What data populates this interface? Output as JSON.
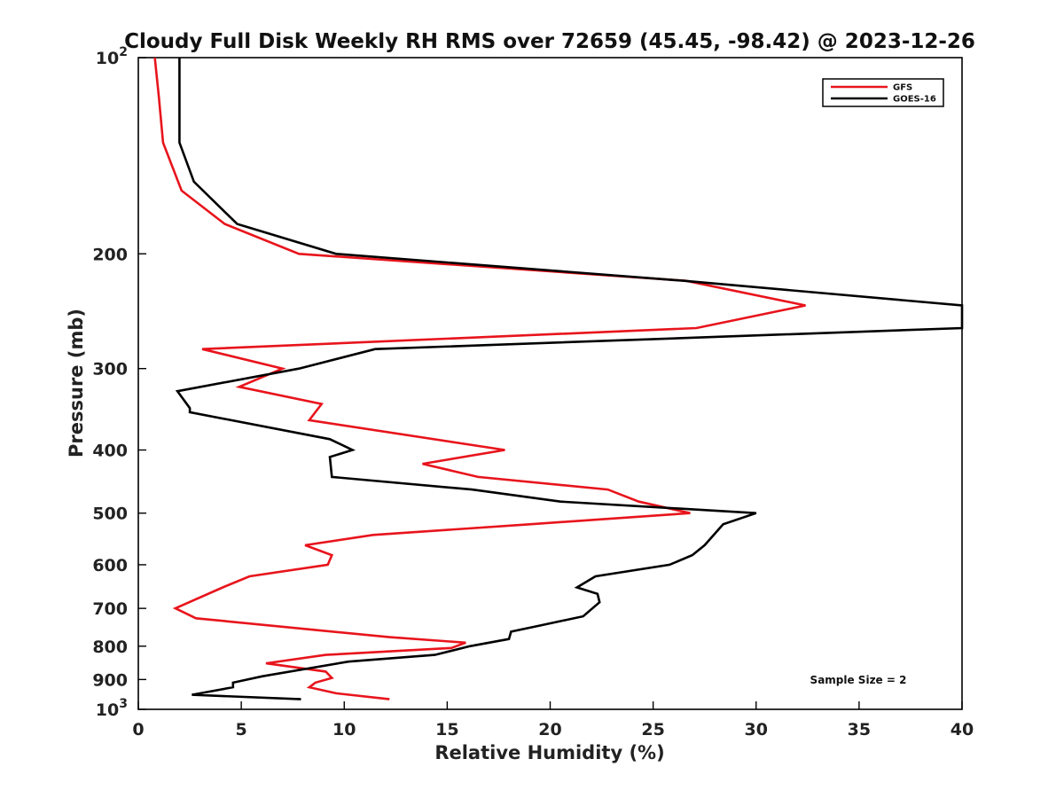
{
  "chart_data": {
    "type": "line",
    "title": "Cloudy Full Disk Weekly RH RMS over 72659 (45.45, -98.42) @ 2023-12-26",
    "xlabel": "Relative Humidity (%)",
    "ylabel": "Pressure (mb)",
    "xlim": [
      0,
      40
    ],
    "ylim": [
      100,
      1000
    ],
    "y_scale": "log",
    "y_reversed": true,
    "x_ticks": [
      "0",
      "5",
      "10",
      "15",
      "20",
      "25",
      "30",
      "35",
      "40"
    ],
    "y_ticks": [
      {
        "value": 100,
        "base": "10",
        "exp": "2"
      },
      {
        "value": 200,
        "label": "200"
      },
      {
        "value": 300,
        "label": "300"
      },
      {
        "value": 400,
        "label": "400"
      },
      {
        "value": 500,
        "label": "500"
      },
      {
        "value": 600,
        "label": "600"
      },
      {
        "value": 700,
        "label": "700"
      },
      {
        "value": 800,
        "label": "800"
      },
      {
        "value": 900,
        "label": "900"
      },
      {
        "value": 1000,
        "base": "10",
        "exp": "3"
      }
    ],
    "grid": false,
    "legend_position": "top-right",
    "annotation": "Sample Size = 2",
    "series": [
      {
        "name": "GFS",
        "color": "#e8141c",
        "points": [
          [
            0.8,
            100
          ],
          [
            1.0,
            115
          ],
          [
            1.2,
            135
          ],
          [
            2.1,
            160
          ],
          [
            4.2,
            180
          ],
          [
            7.8,
            200
          ],
          [
            26.6,
            220
          ],
          [
            32.4,
            240
          ],
          [
            27.1,
            260
          ],
          [
            3.1,
            280
          ],
          [
            7.0,
            300
          ],
          [
            4.9,
            320
          ],
          [
            8.9,
            340
          ],
          [
            8.3,
            360
          ],
          [
            17.8,
            400
          ],
          [
            13.8,
            420
          ],
          [
            16.5,
            440
          ],
          [
            22.8,
            460
          ],
          [
            24.3,
            480
          ],
          [
            26.8,
            500
          ],
          [
            19.0,
            520
          ],
          [
            11.4,
            540
          ],
          [
            8.1,
            560
          ],
          [
            9.4,
            580
          ],
          [
            9.2,
            600
          ],
          [
            5.4,
            625
          ],
          [
            4.1,
            650
          ],
          [
            1.8,
            700
          ],
          [
            2.8,
            725
          ],
          [
            12.2,
            775
          ],
          [
            15.9,
            790
          ],
          [
            15.2,
            805
          ],
          [
            9.1,
            825
          ],
          [
            6.2,
            850
          ],
          [
            9.1,
            875
          ],
          [
            9.4,
            895
          ],
          [
            8.6,
            910
          ],
          [
            8.3,
            925
          ],
          [
            9.6,
            945
          ],
          [
            12.2,
            965
          ]
        ]
      },
      {
        "name": "GOES-16",
        "color": "#000000",
        "points": [
          [
            2.0,
            100
          ],
          [
            2.0,
            115
          ],
          [
            2.0,
            135
          ],
          [
            2.7,
            155
          ],
          [
            4.8,
            180
          ],
          [
            9.6,
            200
          ],
          [
            26.5,
            220
          ],
          [
            40.0,
            240
          ],
          [
            40.0,
            260
          ],
          [
            11.5,
            280
          ],
          [
            7.8,
            300
          ],
          [
            1.9,
            325
          ],
          [
            2.5,
            345
          ],
          [
            2.5,
            350
          ],
          [
            9.3,
            385
          ],
          [
            10.4,
            400
          ],
          [
            9.3,
            410
          ],
          [
            9.4,
            440
          ],
          [
            16.2,
            460
          ],
          [
            20.5,
            480
          ],
          [
            30.0,
            500
          ],
          [
            28.4,
            520
          ],
          [
            27.5,
            560
          ],
          [
            26.9,
            580
          ],
          [
            25.8,
            600
          ],
          [
            22.2,
            625
          ],
          [
            21.3,
            650
          ],
          [
            22.3,
            665
          ],
          [
            22.4,
            685
          ],
          [
            21.6,
            720
          ],
          [
            19.4,
            745
          ],
          [
            18.1,
            760
          ],
          [
            18.0,
            780
          ],
          [
            16.1,
            800
          ],
          [
            14.4,
            825
          ],
          [
            10.2,
            845
          ],
          [
            6.0,
            890
          ],
          [
            4.6,
            910
          ],
          [
            4.6,
            925
          ],
          [
            2.6,
            950
          ],
          [
            7.9,
            965
          ]
        ]
      }
    ]
  }
}
